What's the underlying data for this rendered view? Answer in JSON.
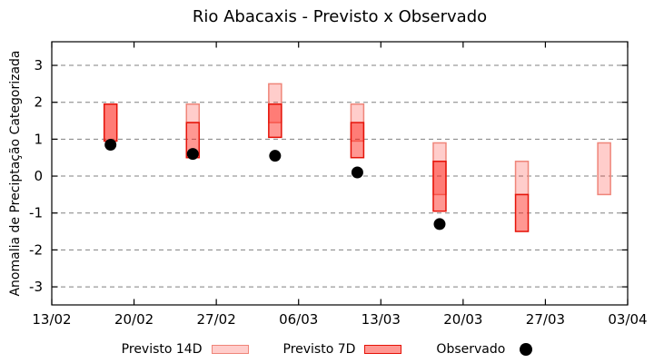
{
  "chart_data": {
    "type": "bar",
    "title": "Rio Abacaxis - Previsto x Observado",
    "xlabel": "",
    "ylabel": "Anomalia de Preciptação Categorizada",
    "x_axis": {
      "tick_labels": [
        "13/02",
        "20/02",
        "27/02",
        "06/03",
        "13/03",
        "20/03",
        "27/03",
        "03/04"
      ],
      "tick_days": [
        0,
        7,
        14,
        21,
        28,
        35,
        42,
        49
      ],
      "range_days": [
        0,
        49
      ]
    },
    "y_axis": {
      "ticks": [
        -3,
        -2,
        -1,
        0,
        1,
        2,
        3
      ],
      "range": [
        -3.49,
        3.64
      ],
      "grid": true,
      "grid_style": "dashed"
    },
    "legend_position": "bottom",
    "series": [
      {
        "name": "Previsto 14D",
        "type": "range_bar",
        "fill": "forecast_14d_fill",
        "border": "forecast_14d_border",
        "points": [
          {
            "date": "18/02",
            "day": 5,
            "low": 0.95,
            "high": 1.95
          },
          {
            "date": "25/02",
            "day": 12,
            "low": 1.45,
            "high": 1.95
          },
          {
            "date": "04/03",
            "day": 19,
            "low": 1.45,
            "high": 2.5
          },
          {
            "date": "11/03",
            "day": 26,
            "low": 0.95,
            "high": 1.95
          },
          {
            "date": "18/03",
            "day": 33,
            "low": -0.5,
            "high": 0.9
          },
          {
            "date": "25/03",
            "day": 40,
            "low": -0.5,
            "high": 0.4
          },
          {
            "date": "01/04",
            "day": 47,
            "low": -0.5,
            "high": 0.9
          }
        ]
      },
      {
        "name": "Previsto 7D",
        "type": "range_bar",
        "fill": "forecast_7d_fill",
        "border": "forecast_7d_border",
        "points": [
          {
            "date": "18/02",
            "day": 5,
            "low": 0.95,
            "high": 1.95
          },
          {
            "date": "25/02",
            "day": 12,
            "low": 0.5,
            "high": 1.45
          },
          {
            "date": "04/03",
            "day": 19,
            "low": 1.05,
            "high": 1.95
          },
          {
            "date": "11/03",
            "day": 26,
            "low": 0.5,
            "high": 1.45
          },
          {
            "date": "18/03",
            "day": 33,
            "low": -0.95,
            "high": 0.4
          },
          {
            "date": "25/03",
            "day": 40,
            "low": -1.5,
            "high": -0.5
          }
        ]
      },
      {
        "name": "Observado",
        "type": "scatter",
        "fill": "observed",
        "points": [
          {
            "date": "18/02",
            "day": 5,
            "value": 0.85
          },
          {
            "date": "25/02",
            "day": 12,
            "value": 0.6
          },
          {
            "date": "04/03",
            "day": 19,
            "value": 0.55
          },
          {
            "date": "11/03",
            "day": 26,
            "value": 0.1
          },
          {
            "date": "18/03",
            "day": 33,
            "value": -1.3
          }
        ]
      }
    ]
  },
  "legend": {
    "items": [
      {
        "label": "Previsto 14D",
        "swatch": "range-14d"
      },
      {
        "label": "Previsto 7D",
        "swatch": "range-7d"
      },
      {
        "label": "Observado",
        "swatch": "dot"
      }
    ]
  },
  "colors": {
    "forecast_14d_fill": "rgba(255,28,18,0.22)",
    "forecast_14d_border": "#ef8579",
    "forecast_7d_fill": "rgba(255,28,18,0.46)",
    "forecast_7d_border": "#e51309",
    "observed": "#000000",
    "grid": "#808080",
    "axis": "#000000",
    "background": "#ffffff"
  }
}
